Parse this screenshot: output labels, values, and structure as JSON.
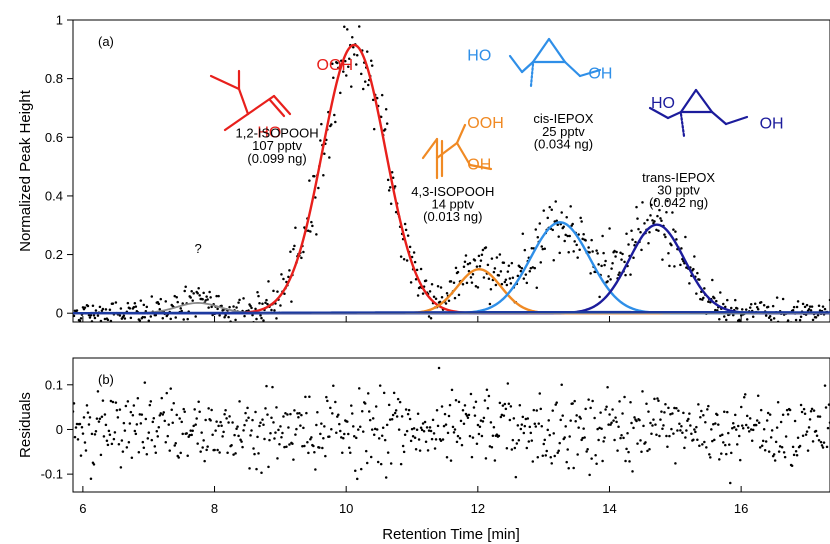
{
  "colors": {
    "iso12": "#e8201c",
    "iso43": "#f08a24",
    "cis": "#2f8fe8",
    "trans": "#1c1c9c",
    "unknown": "#8a8a8a",
    "total": "#1c3aa0",
    "points": "#000000"
  },
  "chart_data": [
    {
      "type": "line",
      "panel_label": "(a)",
      "xlabel": "",
      "ylabel": "Normalized Peak Height",
      "xlim": [
        5.85,
        17.35
      ],
      "ylim": [
        -0.03,
        1.0
      ],
      "x_ticks": [
        "6",
        "8",
        "10",
        "12",
        "14",
        "16"
      ],
      "y_ticks": [
        "0",
        "0.2",
        "0.4",
        "0.6",
        "0.8",
        "1"
      ],
      "grid": false,
      "legend": "none",
      "series": [
        {
          "key": "iso12",
          "peak_type": "gaussian",
          "center": 10.12,
          "height": 0.915,
          "sigma": 0.48
        },
        {
          "key": "iso43",
          "peak_type": "gaussian",
          "center": 12.02,
          "height": 0.15,
          "sigma": 0.33
        },
        {
          "key": "cis",
          "peak_type": "gaussian",
          "center": 13.25,
          "height": 0.31,
          "sigma": 0.45
        },
        {
          "key": "trans",
          "peak_type": "gaussian",
          "center": 14.72,
          "height": 0.302,
          "sigma": 0.42
        },
        {
          "key": "unknown",
          "peak_type": "gaussian",
          "center": 7.75,
          "height": 0.035,
          "sigma": 0.32
        }
      ],
      "annotations": [
        {
          "key": "iso12",
          "x": 9.55,
          "y": 0.83,
          "label": "OOH"
        },
        {
          "key": "iso12",
          "x": 8.65,
          "y": 0.6,
          "label": "HO"
        },
        {
          "key": "iso12",
          "x": 8.95,
          "y": 0.6,
          "label": "1,2-ISOPOOH"
        },
        {
          "key": "iso12",
          "x": 8.95,
          "y": 0.556,
          "label": "107 pptv"
        },
        {
          "key": "iso12",
          "x": 8.95,
          "y": 0.512,
          "label": "(0.099 ng)"
        },
        {
          "key": "iso43",
          "x": 11.84,
          "y": 0.632,
          "label": "OOH"
        },
        {
          "key": "iso43",
          "x": 11.84,
          "y": 0.49,
          "label": "OH"
        },
        {
          "key": "iso43",
          "x": 11.62,
          "y": 0.4,
          "label": "4,3-ISOPOOH"
        },
        {
          "key": "iso43",
          "x": 11.62,
          "y": 0.357,
          "label": "14 pptv"
        },
        {
          "key": "iso43",
          "x": 11.62,
          "y": 0.314,
          "label": "(0.013 ng)"
        },
        {
          "key": "cis",
          "x": 11.84,
          "y": 0.862,
          "label": "HO"
        },
        {
          "key": "cis",
          "x": 13.68,
          "y": 0.8,
          "label": "OH"
        },
        {
          "key": "cis",
          "x": 13.3,
          "y": 0.648,
          "label": "cis-IEPOX"
        },
        {
          "key": "cis",
          "x": 13.3,
          "y": 0.605,
          "label": "25 pptv"
        },
        {
          "key": "cis",
          "x": 13.3,
          "y": 0.562,
          "label": "(0.034 ng)"
        },
        {
          "key": "trans",
          "x": 14.63,
          "y": 0.7,
          "label": "HO"
        },
        {
          "key": "trans",
          "x": 16.28,
          "y": 0.63,
          "label": "OH"
        },
        {
          "key": "trans",
          "x": 15.05,
          "y": 0.448,
          "label": "trans-IEPOX"
        },
        {
          "key": "trans",
          "x": 15.05,
          "y": 0.405,
          "label": "30 pptv"
        },
        {
          "key": "trans",
          "x": 15.05,
          "y": 0.362,
          "label": "(0.042 ng)"
        },
        {
          "key": "unknown",
          "x": 7.75,
          "y": 0.205,
          "label": "?"
        }
      ]
    },
    {
      "type": "scatter",
      "panel_label": "(b)",
      "xlabel": "Retention Time [min]",
      "ylabel": "Residuals",
      "xlim": [
        5.85,
        17.35
      ],
      "ylim": [
        -0.14,
        0.16
      ],
      "x_ticks": [
        "6",
        "8",
        "10",
        "12",
        "14",
        "16"
      ],
      "y_ticks": [
        "-0.1",
        "0",
        "0.1"
      ],
      "grid": false,
      "legend": "none"
    }
  ]
}
